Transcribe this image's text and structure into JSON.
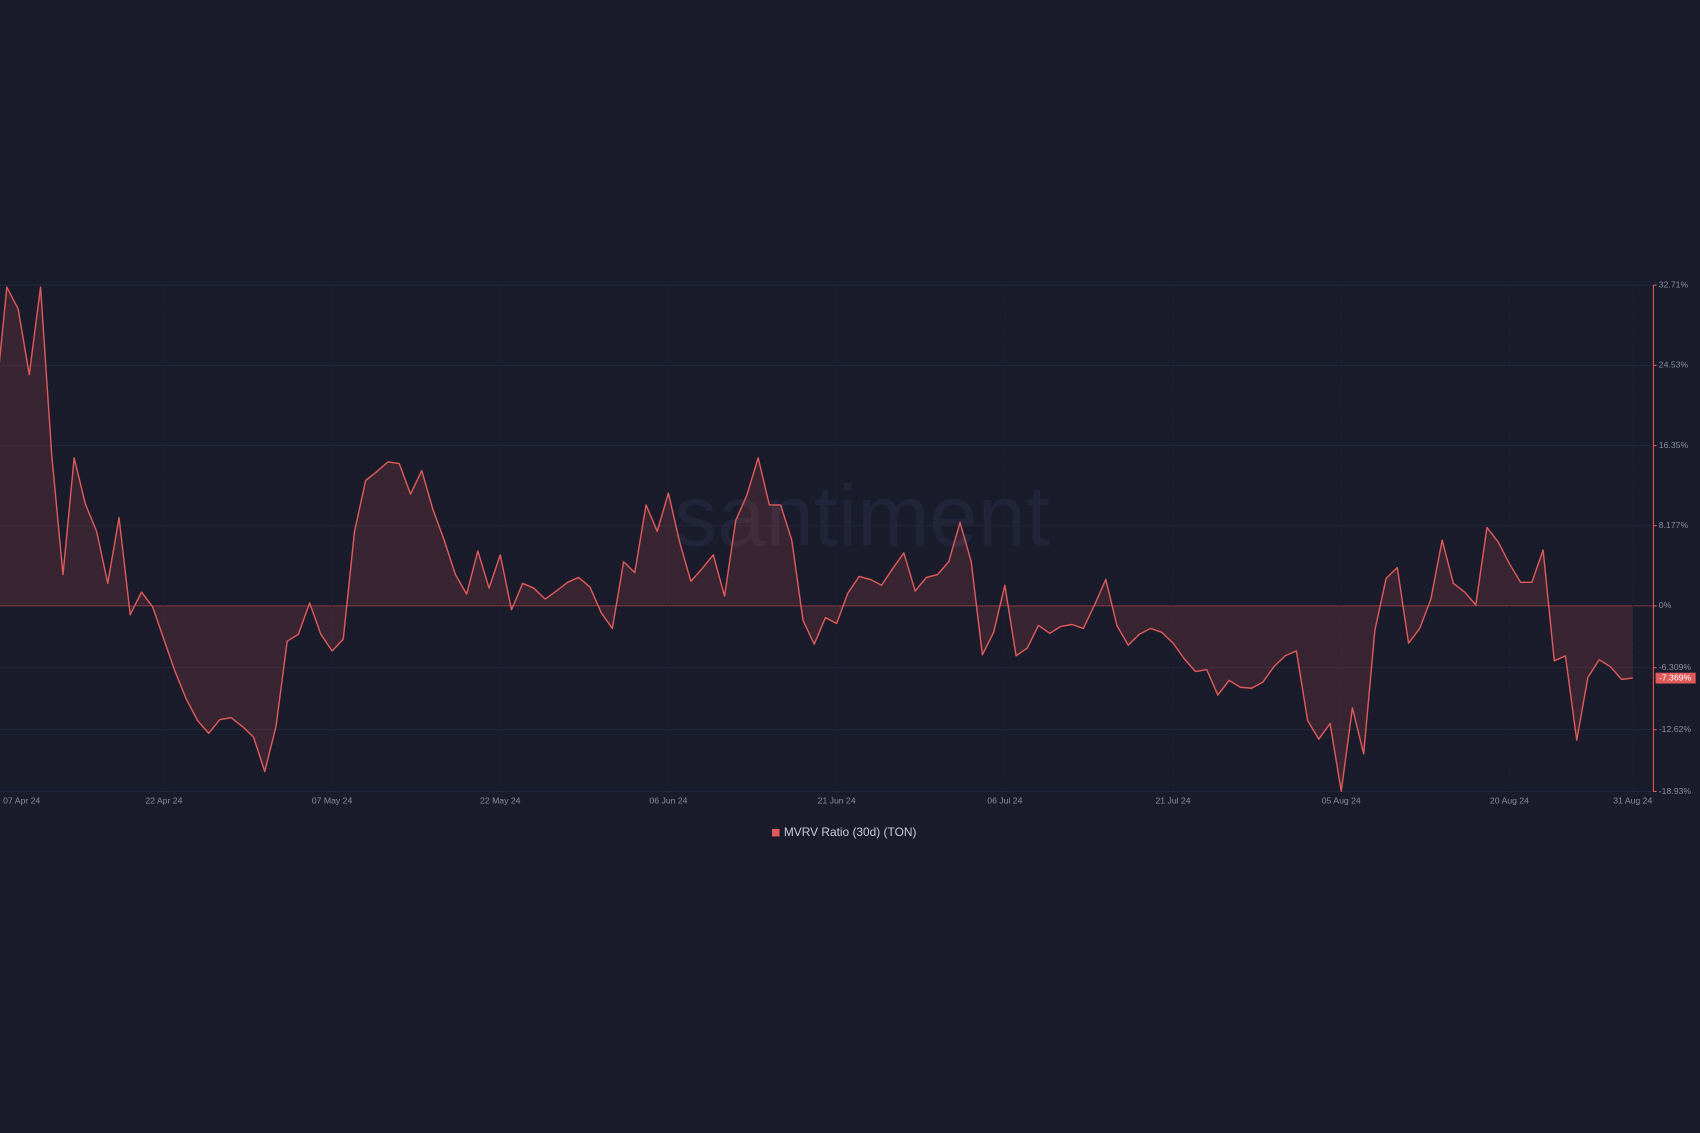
{
  "chart_data": {
    "type": "area",
    "watermark": "santiment",
    "x": [
      "2024-04-07",
      "2024-04-08",
      "2024-04-09",
      "2024-04-10",
      "2024-04-11",
      "2024-04-12",
      "2024-04-13",
      "2024-04-14",
      "2024-04-15",
      "2024-04-16",
      "2024-04-17",
      "2024-04-18",
      "2024-04-19",
      "2024-04-20",
      "2024-04-21",
      "2024-04-22",
      "2024-04-23",
      "2024-04-24",
      "2024-04-25",
      "2024-04-26",
      "2024-04-27",
      "2024-04-28",
      "2024-04-29",
      "2024-04-30",
      "2024-05-01",
      "2024-05-02",
      "2024-05-03",
      "2024-05-04",
      "2024-05-05",
      "2024-05-06",
      "2024-05-07",
      "2024-05-08",
      "2024-05-09",
      "2024-05-10",
      "2024-05-11",
      "2024-05-12",
      "2024-05-13",
      "2024-05-14",
      "2024-05-15",
      "2024-05-16",
      "2024-05-17",
      "2024-05-18",
      "2024-05-19",
      "2024-05-20",
      "2024-05-21",
      "2024-05-22",
      "2024-05-23",
      "2024-05-24",
      "2024-05-25",
      "2024-05-26",
      "2024-05-27",
      "2024-05-28",
      "2024-05-29",
      "2024-05-30",
      "2024-05-31",
      "2024-06-01",
      "2024-06-02",
      "2024-06-03",
      "2024-06-04",
      "2024-06-05",
      "2024-06-06",
      "2024-06-07",
      "2024-06-08",
      "2024-06-09",
      "2024-06-10",
      "2024-06-11",
      "2024-06-12",
      "2024-06-13",
      "2024-06-14",
      "2024-06-15",
      "2024-06-16",
      "2024-06-17",
      "2024-06-18",
      "2024-06-19",
      "2024-06-20",
      "2024-06-21",
      "2024-06-22",
      "2024-06-23",
      "2024-06-24",
      "2024-06-25",
      "2024-06-26",
      "2024-06-27",
      "2024-06-28",
      "2024-06-29",
      "2024-06-30",
      "2024-07-01",
      "2024-07-02",
      "2024-07-03",
      "2024-07-04",
      "2024-07-05",
      "2024-07-06",
      "2024-07-07",
      "2024-07-08",
      "2024-07-09",
      "2024-07-10",
      "2024-07-11",
      "2024-07-12",
      "2024-07-13",
      "2024-07-14",
      "2024-07-15",
      "2024-07-16",
      "2024-07-17",
      "2024-07-18",
      "2024-07-19",
      "2024-07-20",
      "2024-07-21",
      "2024-07-22",
      "2024-07-23",
      "2024-07-24",
      "2024-07-25",
      "2024-07-26",
      "2024-07-27",
      "2024-07-28",
      "2024-07-29",
      "2024-07-30",
      "2024-07-31",
      "2024-08-01",
      "2024-08-02",
      "2024-08-03",
      "2024-08-04",
      "2024-08-05",
      "2024-08-06",
      "2024-08-07",
      "2024-08-08",
      "2024-08-09",
      "2024-08-10",
      "2024-08-11",
      "2024-08-12",
      "2024-08-13",
      "2024-08-14",
      "2024-08-15",
      "2024-08-16",
      "2024-08-17",
      "2024-08-18",
      "2024-08-19",
      "2024-08-20",
      "2024-08-21",
      "2024-08-22",
      "2024-08-23",
      "2024-08-24",
      "2024-08-25",
      "2024-08-26",
      "2024-08-27",
      "2024-08-28",
      "2024-08-29",
      "2024-08-30",
      "2024-08-31"
    ],
    "series": [
      {
        "name": "MVRV Ratio (30d) (TON)",
        "color": "#e05a5a",
        "values": [
          21.0,
          32.5,
          30.3,
          23.6,
          32.5,
          15.4,
          3.2,
          15.1,
          10.4,
          7.6,
          2.3,
          9.0,
          -0.9,
          1.4,
          -0.1,
          -3.4,
          -6.7,
          -9.5,
          -11.7,
          -13.0,
          -11.6,
          -11.4,
          -12.3,
          -13.4,
          -16.9,
          -12.3,
          -3.6,
          -2.9,
          0.3,
          -2.9,
          -4.6,
          -3.4,
          7.6,
          12.8,
          13.7,
          14.7,
          14.5,
          11.4,
          13.8,
          9.8,
          6.7,
          3.2,
          1.2,
          5.6,
          1.8,
          5.2,
          -0.4,
          2.3,
          1.8,
          0.7,
          1.5,
          2.4,
          2.9,
          1.9,
          -0.7,
          -2.3,
          4.5,
          3.4,
          10.3,
          7.6,
          11.5,
          6.5,
          2.5,
          3.8,
          5.2,
          1.0,
          8.7,
          11.3,
          15.1,
          10.3,
          10.3,
          6.7,
          -1.5,
          -3.9,
          -1.2,
          -1.8,
          1.3,
          3.0,
          2.7,
          2.1,
          3.8,
          5.4,
          1.5,
          2.9,
          3.2,
          4.5,
          8.5,
          4.5,
          -5.0,
          -2.7,
          2.1,
          -5.1,
          -4.3,
          -2.0,
          -2.8,
          -2.1,
          -1.9,
          -2.3,
          0.1,
          2.7,
          -2.0,
          -4.0,
          -2.9,
          -2.3,
          -2.7,
          -3.8,
          -5.4,
          -6.7,
          -6.5,
          -9.1,
          -7.6,
          -8.3,
          -8.4,
          -7.8,
          -6.2,
          -5.1,
          -4.6,
          -11.7,
          -13.6,
          -12.0,
          -18.9,
          -10.4,
          -15.1,
          -2.5,
          2.8,
          3.9,
          -3.8,
          -2.3,
          0.7,
          6.7,
          2.3,
          1.4,
          0.1,
          8.0,
          6.5,
          4.3,
          2.4,
          2.4,
          5.7,
          -5.6,
          -5.1,
          -13.7,
          -7.3,
          -5.5,
          -6.2,
          -7.5,
          -7.369
        ]
      }
    ],
    "current_value": -7.369,
    "current_value_label": "-7.369%",
    "xlim": [
      "2024-04-07",
      "2024-08-31"
    ],
    "xticks": [
      {
        "value": "2024-04-07",
        "label": "07 Apr 24"
      },
      {
        "value": "2024-04-22",
        "label": "22 Apr 24"
      },
      {
        "value": "2024-05-07",
        "label": "07 May 24"
      },
      {
        "value": "2024-05-22",
        "label": "22 May 24"
      },
      {
        "value": "2024-06-06",
        "label": "06 Jun 24"
      },
      {
        "value": "2024-06-21",
        "label": "21 Jun 24"
      },
      {
        "value": "2024-07-06",
        "label": "06 Jul 24"
      },
      {
        "value": "2024-07-21",
        "label": "21 Jul 24"
      },
      {
        "value": "2024-08-05",
        "label": "05 Aug 24"
      },
      {
        "value": "2024-08-20",
        "label": "20 Aug 24"
      },
      {
        "value": "2024-08-31",
        "label": "31 Aug 24"
      }
    ],
    "ylim": [
      -18.93,
      32.71
    ],
    "yticks": [
      {
        "value": 32.71,
        "label": "32.71%"
      },
      {
        "value": 24.53,
        "label": "24.53%"
      },
      {
        "value": 16.35,
        "label": "16.35%"
      },
      {
        "value": 8.177,
        "label": "8.177%"
      },
      {
        "value": 0,
        "label": "0%"
      },
      {
        "value": -6.309,
        "label": "-6.309%"
      },
      {
        "value": -12.62,
        "label": "-12.62%"
      },
      {
        "value": -18.93,
        "label": "-18.93%"
      }
    ],
    "grid": true,
    "legend": "bottom"
  }
}
